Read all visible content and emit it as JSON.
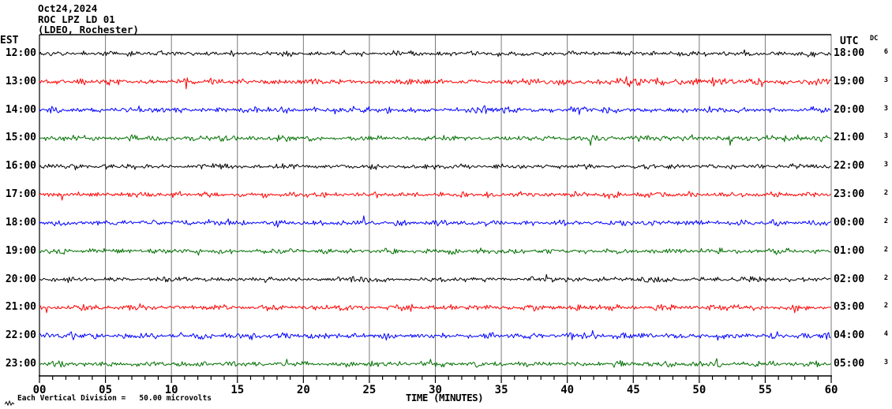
{
  "header": {
    "date": "Oct24,2024",
    "station": "ROC LPZ LD 01",
    "location": "(LDEO, Rochester)"
  },
  "left_axis": {
    "label": "EST"
  },
  "right_axis": {
    "label": "UTC",
    "dc_label": "DC"
  },
  "x_axis": {
    "label": "TIME (MINUTES)",
    "tick_labels": [
      "00",
      "05",
      "10",
      "15",
      "20",
      "25",
      "30",
      "35",
      "40",
      "45",
      "50",
      "55",
      "60"
    ],
    "minor_ticks_every_minutes": 1,
    "major_ticks_every_minutes": 5
  },
  "footer": {
    "scale_note": "Each Vertical Division =   50.00 microvolts"
  },
  "colors": {
    "trace_black": "#000000",
    "trace_red": "#ff0000",
    "trace_blue": "#0000ff",
    "trace_green": "#007000",
    "grid": "#7a7a7a",
    "frame": "#000000",
    "background": "#ffffff",
    "text": "#000000"
  },
  "chart_data": {
    "type": "line",
    "title": "ROC LPZ LD 01 helicorder, Oct24,2024 (LDEO, Rochester)",
    "xlabel": "TIME (MINUTES)",
    "x_range_minutes": [
      0,
      60
    ],
    "x_ticks_minutes": [
      0,
      5,
      10,
      15,
      20,
      25,
      30,
      35,
      40,
      45,
      50,
      55,
      60
    ],
    "grid": "vertical-only",
    "vertical_division_microvolts": 50.0,
    "description": "Twelve one-hour rows of continuous seismic background noise; no large events, minor amplitude bursts noted per row.",
    "rows": [
      {
        "est": "12:00",
        "utc": "18:00",
        "dc": "6",
        "color": "#000000",
        "noise_amp_uv": 4.6,
        "seed": 11,
        "bursts": []
      },
      {
        "est": "13:00",
        "utc": "19:00",
        "dc": "3",
        "color": "#ff0000",
        "noise_amp_uv": 5.2,
        "seed": 22,
        "bursts": [
          {
            "start": 44,
            "end": 52,
            "gain": 1.7
          }
        ]
      },
      {
        "est": "14:00",
        "utc": "20:00",
        "dc": "3",
        "color": "#0000ff",
        "noise_amp_uv": 5.2,
        "seed": 33,
        "bursts": []
      },
      {
        "est": "15:00",
        "utc": "21:00",
        "dc": "3",
        "color": "#007000",
        "noise_amp_uv": 4.8,
        "seed": 44,
        "bursts": [
          {
            "start": 54,
            "end": 57.5,
            "gain": 1.5
          }
        ]
      },
      {
        "est": "16:00",
        "utc": "22:00",
        "dc": "3",
        "color": "#000000",
        "noise_amp_uv": 4.4,
        "seed": 55,
        "bursts": []
      },
      {
        "est": "17:00",
        "utc": "23:00",
        "dc": "2",
        "color": "#ff0000",
        "noise_amp_uv": 4.8,
        "seed": 66,
        "bursts": []
      },
      {
        "est": "18:00",
        "utc": "00:00",
        "dc": "2",
        "color": "#0000ff",
        "noise_amp_uv": 4.6,
        "seed": 77,
        "bursts": []
      },
      {
        "est": "19:00",
        "utc": "01:00",
        "dc": "2",
        "color": "#007000",
        "noise_amp_uv": 4.6,
        "seed": 88,
        "bursts": []
      },
      {
        "est": "20:00",
        "utc": "02:00",
        "dc": "2",
        "color": "#000000",
        "noise_amp_uv": 4.4,
        "seed": 99,
        "bursts": [
          {
            "start": 23.5,
            "end": 25,
            "gain": 1.9
          }
        ]
      },
      {
        "est": "21:00",
        "utc": "03:00",
        "dc": "2",
        "color": "#ff0000",
        "noise_amp_uv": 4.8,
        "seed": 110,
        "bursts": []
      },
      {
        "est": "22:00",
        "utc": "04:00",
        "dc": "4",
        "color": "#0000ff",
        "noise_amp_uv": 5.2,
        "seed": 121,
        "bursts": [
          {
            "start": 1,
            "end": 4,
            "gain": 1.5
          }
        ]
      },
      {
        "est": "23:00",
        "utc": "05:00",
        "dc": "3",
        "color": "#007000",
        "noise_amp_uv": 5.0,
        "seed": 132,
        "bursts": []
      }
    ]
  }
}
